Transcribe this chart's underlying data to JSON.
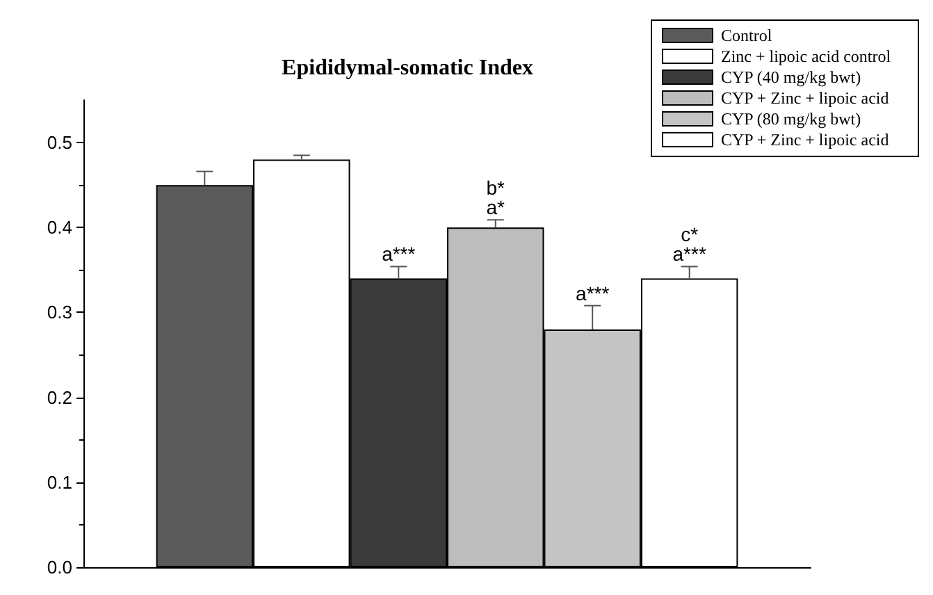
{
  "chart_data": {
    "type": "bar",
    "title": "Epididymal-somatic Index",
    "categories": [
      null
    ],
    "series": [
      {
        "name": "Control",
        "color": "#5a5a5a",
        "values": [
          0.45
        ],
        "errors": [
          0.016
        ]
      },
      {
        "name": "Zinc + lipoic acid control",
        "color": "#ffffff",
        "values": [
          0.48
        ],
        "errors": [
          0.005
        ]
      },
      {
        "name": "CYP (40 mg/kg bwt)",
        "color": "#3a3a3a",
        "values": [
          0.34
        ],
        "errors": [
          0.014
        ],
        "value_labels": [
          "a***"
        ]
      },
      {
        "name": "CYP + Zinc + lipoic acid",
        "color": "#bdbdbd",
        "values": [
          0.4
        ],
        "errors": [
          0.009
        ],
        "value_labels": [
          "b*\na*"
        ]
      },
      {
        "name": "CYP (80 mg/kg bwt)",
        "color": "#c4c4c4",
        "values": [
          0.28
        ],
        "errors": [
          0.028
        ],
        "value_labels": [
          "a***"
        ]
      },
      {
        "name": "CYP + Zinc + lipoic acid",
        "color": "#ffffff",
        "values": [
          0.34
        ],
        "errors": [
          0.014
        ],
        "value_labels": [
          "c*\na***"
        ]
      }
    ],
    "ylim": [
      0,
      0.55
    ],
    "yticks": [
      {
        "value": 0,
        "label": "0.0"
      },
      {
        "value": 0.1,
        "label": "0.1"
      },
      {
        "value": 0.2,
        "label": "0.2"
      },
      {
        "value": 0.3,
        "label": "0.3"
      },
      {
        "value": 0.4,
        "label": "0.4"
      },
      {
        "value": 0.5,
        "label": "0.5"
      }
    ],
    "grid": false,
    "legend": "top right"
  }
}
